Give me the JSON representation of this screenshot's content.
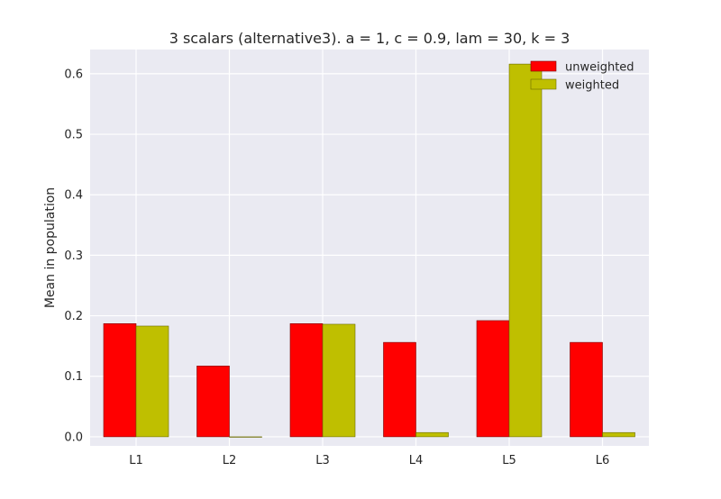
{
  "chart_data": {
    "type": "bar",
    "title": "3 scalars (alternative3). a = 1, c = 0.9, lam = 30, k = 3",
    "xlabel": "",
    "ylabel": "Mean in population",
    "categories": [
      "L1",
      "L2",
      "L3",
      "L4",
      "L5",
      "L6"
    ],
    "series": [
      {
        "name": "unweighted",
        "color": "#ff0000",
        "values": [
          0.187,
          0.117,
          0.187,
          0.156,
          0.192,
          0.156
        ]
      },
      {
        "name": "weighted",
        "color": "#bfbf00",
        "values": [
          0.183,
          0.0,
          0.186,
          0.007,
          0.616,
          0.007
        ]
      }
    ],
    "ylim": [
      -0.015,
      0.64
    ],
    "yticks": [
      "0.0",
      "0.1",
      "0.2",
      "0.3",
      "0.4",
      "0.5",
      "0.6"
    ],
    "grid": true,
    "legend": "top-right",
    "background": "#eaeaf2"
  }
}
